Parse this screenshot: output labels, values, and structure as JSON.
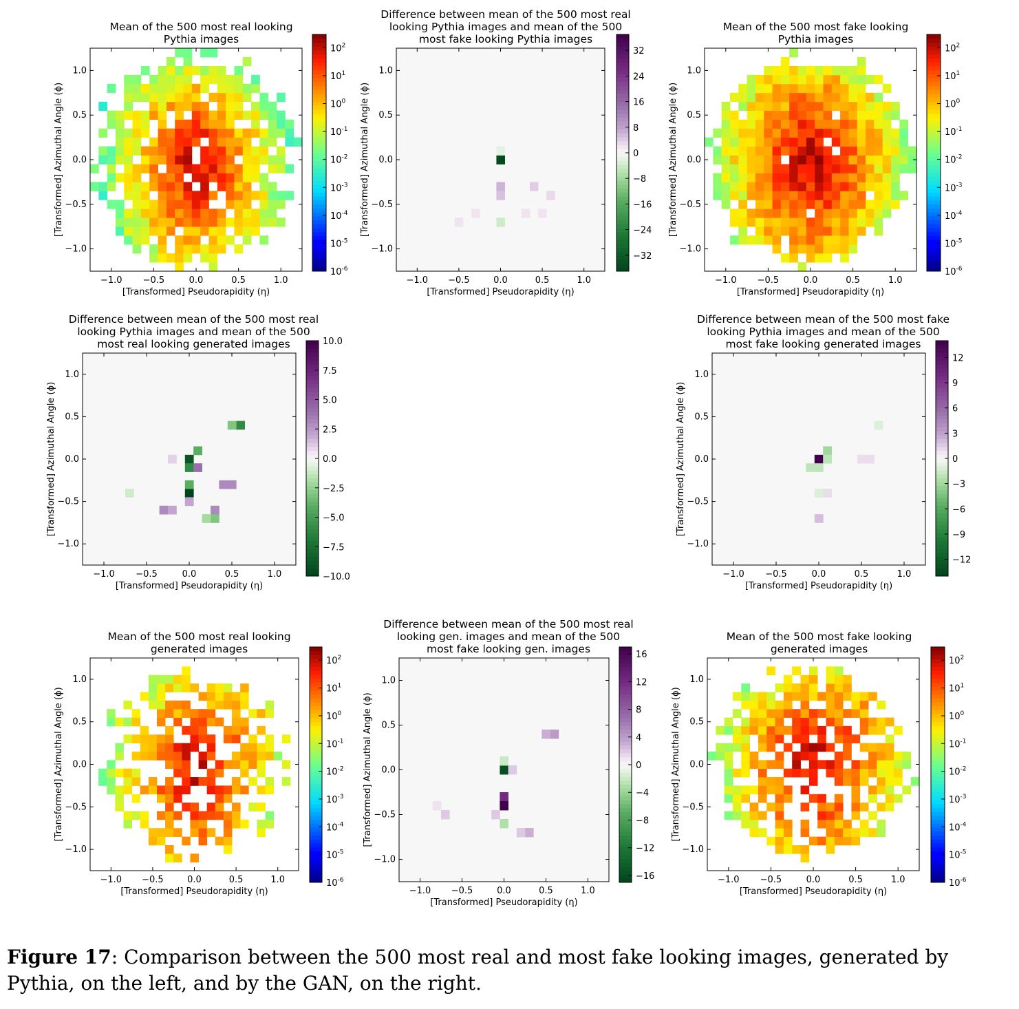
{
  "caption": {
    "label": "Figure 17",
    "text": ": Comparison between the 500 most real and most fake looking images, generated by Pythia, on the left, and by the GAN, on the right."
  },
  "chart_data": [
    {
      "id": "p_real",
      "type": "heatmap",
      "title_lines": [
        "Mean of the 500 most real looking",
        "Pythia images"
      ],
      "xlabel": "[Transformed] Pseudorapidity (η)",
      "ylabel": "[Transformed] Azimuthal Angle (ϕ)",
      "xlim": [
        -1.25,
        1.25
      ],
      "ylim": [
        -1.25,
        1.25
      ],
      "xticks": [
        -1.0,
        -0.5,
        0.0,
        0.5,
        1.0
      ],
      "yticks": [
        -1.0,
        -0.5,
        0.0,
        0.5,
        1.0
      ],
      "colorbar": {
        "scale": "log",
        "colormap": "jet",
        "range": [
          1e-06,
          300
        ],
        "tick_labels": [
          "10-6",
          "10-5",
          "10-4",
          "10-3",
          "10-2",
          "10-1",
          "100",
          "101",
          "102"
        ]
      },
      "pattern": {
        "kind": "log",
        "peaks": [
          [
            0.0,
            0.0,
            120
          ],
          [
            0.0,
            -0.35,
            30
          ]
        ],
        "spread": 0.35,
        "radius": 1.18,
        "fill": 0.85,
        "seed": 3
      }
    },
    {
      "id": "p_diff",
      "type": "heatmap",
      "title_lines": [
        "Difference between mean of the 500 most real",
        "looking Pythia images and mean of the 500",
        "most fake looking Pythia images"
      ],
      "xlabel": "[Transformed] Pseudorapidity (η)",
      "ylabel": "[Transformed] Azimuthal Angle (ϕ)",
      "xlim": [
        -1.25,
        1.25
      ],
      "ylim": [
        -1.25,
        1.25
      ],
      "xticks": [
        -1.0,
        -0.5,
        0.0,
        0.5,
        1.0
      ],
      "yticks": [
        -1.0,
        -0.5,
        0.0,
        0.5,
        1.0
      ],
      "colorbar": {
        "scale": "linear",
        "colormap": "PRGn",
        "range": [
          -37,
          37
        ],
        "ticks": [
          -32,
          -24,
          -16,
          -8,
          0,
          8,
          16,
          24,
          32
        ]
      },
      "cells": [
        [
          0.0,
          0.0,
          -36
        ],
        [
          0.0,
          -0.35,
          6
        ],
        [
          0.0,
          -0.45,
          5
        ],
        [
          0.4,
          -0.35,
          4
        ],
        [
          0.3,
          -0.6,
          2
        ],
        [
          -0.3,
          -0.6,
          2
        ],
        [
          0.0,
          -0.7,
          -4
        ],
        [
          0.6,
          -0.4,
          3
        ],
        [
          -0.5,
          -0.7,
          2
        ],
        [
          0.5,
          -0.6,
          2
        ],
        [
          0.0,
          0.1,
          -2
        ]
      ]
    },
    {
      "id": "p_fake",
      "type": "heatmap",
      "title_lines": [
        "Mean of the 500 most fake looking",
        "Pythia images"
      ],
      "xlabel": "[Transformed] Pseudorapidity (η)",
      "ylabel": "[Transformed] Azimuthal Angle (ϕ)",
      "xlim": [
        -1.25,
        1.25
      ],
      "ylim": [
        -1.25,
        1.25
      ],
      "xticks": [
        -1.0,
        -0.5,
        0.0,
        0.5,
        1.0
      ],
      "yticks": [
        -1.0,
        -0.5,
        0.0,
        0.5,
        1.0
      ],
      "colorbar": {
        "scale": "log",
        "colormap": "jet",
        "range": [
          1e-06,
          300
        ],
        "tick_labels": [
          "10-6",
          "10-5",
          "10-4",
          "10-3",
          "10-2",
          "10-1",
          "100",
          "101",
          "102"
        ]
      },
      "pattern": {
        "kind": "log",
        "peaks": [
          [
            0.0,
            0.0,
            150
          ],
          [
            0.0,
            -0.4,
            20
          ],
          [
            0.3,
            0.0,
            3
          ]
        ],
        "spread": 0.4,
        "radius": 1.15,
        "fill": 0.97,
        "seed": 7
      }
    },
    {
      "id": "p_vs_g_real",
      "type": "heatmap",
      "title_lines": [
        "Difference between mean of the 500 most real",
        "looking Pythia images and mean of the 500",
        "most real looking generated images"
      ],
      "xlabel": "[Transformed] Pseudorapidity (η)",
      "ylabel": "[Transformed] Azimuthal Angle (ϕ)",
      "xlim": [
        -1.25,
        1.25
      ],
      "ylim": [
        -1.25,
        1.25
      ],
      "xticks": [
        -1.0,
        -0.5,
        0.0,
        0.5,
        1.0
      ],
      "yticks": [
        -1.0,
        -0.5,
        0.0,
        0.5,
        1.0
      ],
      "colorbar": {
        "scale": "linear",
        "colormap": "PRGn",
        "range": [
          -10,
          10
        ],
        "ticks": [
          -10.0,
          -7.5,
          -5.0,
          -2.5,
          0.0,
          2.5,
          5.0,
          7.5,
          10.0
        ]
      },
      "cells": [
        [
          0.0,
          0.0,
          -9
        ],
        [
          0.0,
          -0.1,
          -6
        ],
        [
          0.1,
          -0.1,
          4
        ],
        [
          0.0,
          -0.4,
          -10
        ],
        [
          0.1,
          0.1,
          -4
        ],
        [
          0.6,
          0.4,
          -6
        ],
        [
          0.5,
          0.4,
          -3
        ],
        [
          0.4,
          -0.3,
          3
        ],
        [
          0.5,
          -0.3,
          3
        ],
        [
          0.3,
          -0.6,
          3
        ],
        [
          -0.3,
          -0.6,
          3
        ],
        [
          0.3,
          -0.7,
          -3
        ],
        [
          0.2,
          -0.7,
          -2
        ],
        [
          -0.2,
          -0.6,
          2
        ],
        [
          0.0,
          -0.3,
          -4
        ],
        [
          -0.7,
          -0.4,
          -1
        ],
        [
          0.0,
          -0.5,
          2
        ],
        [
          -0.2,
          0.0,
          1
        ]
      ]
    },
    {
      "id": "f_vs_g_fake",
      "type": "heatmap",
      "title_lines": [
        "Difference between mean of the 500 most fake",
        "looking Pythia images and mean of the 500",
        "most fake looking generated images"
      ],
      "xlabel": "[Transformed] Pseudorapidity (η)",
      "ylabel": "[Transformed] Azimuthal Angle (ϕ)",
      "xlim": [
        -1.25,
        1.25
      ],
      "ylim": [
        -1.25,
        1.25
      ],
      "xticks": [
        -1.0,
        -0.5,
        0.0,
        0.5,
        1.0
      ],
      "yticks": [
        -1.0,
        -0.5,
        0.0,
        0.5,
        1.0
      ],
      "colorbar": {
        "scale": "linear",
        "colormap": "PRGn",
        "range": [
          -14,
          14
        ],
        "ticks": [
          -12,
          -9,
          -6,
          -3,
          0,
          3,
          6,
          9,
          12
        ]
      },
      "cells": [
        [
          0.0,
          0.0,
          14
        ],
        [
          0.1,
          0.1,
          -3
        ],
        [
          0.1,
          0.0,
          -2
        ],
        [
          -0.1,
          -0.1,
          -2
        ],
        [
          0.0,
          -0.1,
          -2
        ],
        [
          0.1,
          -0.4,
          1
        ],
        [
          0.0,
          -0.7,
          2
        ],
        [
          0.5,
          0.0,
          1
        ],
        [
          0.7,
          0.4,
          -1
        ],
        [
          0.6,
          0.0,
          1
        ],
        [
          0.0,
          -0.4,
          -1
        ]
      ]
    },
    {
      "id": "g_real",
      "type": "heatmap",
      "title_lines": [
        "Mean of the 500 most real looking",
        "generated images"
      ],
      "xlabel": "[Transformed] Pseudorapidity (η)",
      "ylabel": "[Transformed] Azimuthal Angle (ϕ)",
      "xlim": [
        -1.25,
        1.25
      ],
      "ylim": [
        -1.25,
        1.25
      ],
      "xticks": [
        -1.0,
        -0.5,
        0.0,
        0.5,
        1.0
      ],
      "yticks": [
        -1.0,
        -0.5,
        0.0,
        0.5,
        1.0
      ],
      "colorbar": {
        "scale": "log",
        "colormap": "jet",
        "range": [
          1e-06,
          300
        ],
        "tick_labels": [
          "10-6",
          "10-5",
          "10-4",
          "10-3",
          "10-2",
          "10-1",
          "100",
          "101",
          "102"
        ]
      },
      "pattern": {
        "kind": "log",
        "peaks": [
          [
            0.0,
            0.0,
            100
          ],
          [
            0.0,
            -0.4,
            30
          ],
          [
            0.5,
            0.45,
            5
          ],
          [
            0.25,
            -0.7,
            3
          ]
        ],
        "spread": 0.38,
        "radius": 1.05,
        "fill": 0.62,
        "seed": 11
      }
    },
    {
      "id": "g_diff",
      "type": "heatmap",
      "title_lines": [
        "Difference between mean of the 500 most real",
        "looking gen. images and mean of the 500",
        "most fake looking gen. images"
      ],
      "xlabel": "[Transformed] Pseudorapidity (η)",
      "ylabel": "[Transformed] Azimuthal Angle (ϕ)",
      "xlim": [
        -1.25,
        1.25
      ],
      "ylim": [
        -1.25,
        1.25
      ],
      "xticks": [
        -1.0,
        -0.5,
        0.0,
        0.5,
        1.0
      ],
      "yticks": [
        -1.0,
        -0.5,
        0.0,
        0.5,
        1.0
      ],
      "colorbar": {
        "scale": "linear",
        "colormap": "PRGn",
        "range": [
          -17,
          17
        ],
        "ticks": [
          -16,
          -12,
          -8,
          -4,
          0,
          4,
          8,
          12,
          16
        ]
      },
      "cells": [
        [
          0.0,
          0.0,
          -16
        ],
        [
          0.0,
          -0.3,
          12
        ],
        [
          0.0,
          -0.4,
          17
        ],
        [
          0.6,
          0.4,
          4
        ],
        [
          0.5,
          0.4,
          3
        ],
        [
          0.3,
          -0.7,
          3
        ],
        [
          0.2,
          -0.7,
          2
        ],
        [
          0.1,
          0.0,
          2
        ],
        [
          -0.7,
          -0.5,
          2
        ],
        [
          0.0,
          -0.6,
          -3
        ],
        [
          0.0,
          0.1,
          -2
        ],
        [
          -0.1,
          -0.5,
          2
        ],
        [
          -0.8,
          -0.4,
          1
        ]
      ]
    },
    {
      "id": "g_fake",
      "type": "heatmap",
      "title_lines": [
        "Mean of the 500 most fake looking",
        "generated images"
      ],
      "xlabel": "[Transformed] Pseudorapidity (η)",
      "ylabel": "[Transformed] Azimuthal Angle (ϕ)",
      "xlim": [
        -1.25,
        1.25
      ],
      "ylim": [
        -1.25,
        1.25
      ],
      "xticks": [
        -1.0,
        -0.5,
        0.0,
        0.5,
        1.0
      ],
      "yticks": [
        -1.0,
        -0.5,
        0.0,
        0.5,
        1.0
      ],
      "colorbar": {
        "scale": "log",
        "colormap": "jet",
        "range": [
          1e-06,
          300
        ],
        "tick_labels": [
          "10-6",
          "10-5",
          "10-4",
          "10-3",
          "10-2",
          "10-1",
          "100",
          "101",
          "102"
        ]
      },
      "pattern": {
        "kind": "log",
        "peaks": [
          [
            0.0,
            0.0,
            150
          ],
          [
            0.0,
            -0.5,
            10
          ],
          [
            0.5,
            0.4,
            5
          ]
        ],
        "spread": 0.4,
        "radius": 1.12,
        "fill": 0.7,
        "seed": 19
      }
    }
  ]
}
